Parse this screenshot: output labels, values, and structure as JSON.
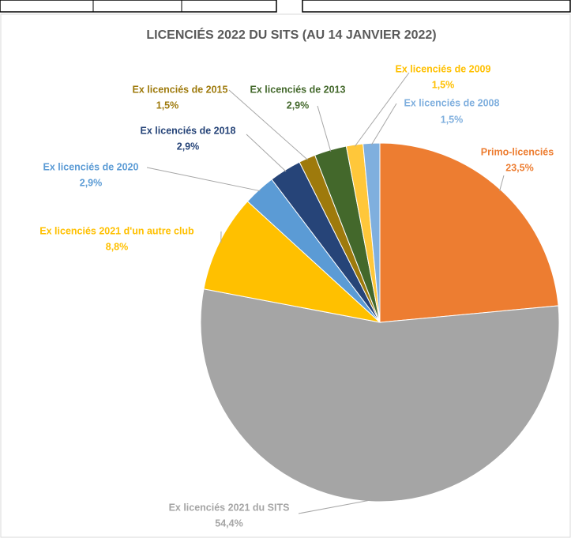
{
  "chart_data": {
    "type": "pie",
    "title": "LICENCIÉS 2022 DU SITS (AU 14 JANVIER 2022)",
    "categories": [
      "Primo-licenciés",
      "Ex licenciés 2021 du SITS",
      "Ex licenciés 2021 d'un autre club",
      "Ex licenciés de 2020",
      "Ex licenciés de 2018",
      "Ex licenciés de 2015",
      "Ex licenciés de 2013",
      "Ex licenciés de 2009",
      "Ex licenciés de 2008"
    ],
    "values": [
      23.5,
      54.4,
      8.8,
      2.9,
      2.9,
      1.5,
      2.9,
      1.5,
      1.5
    ],
    "value_labels": [
      "23,5%",
      "54,4%",
      "8,8%",
      "2,9%",
      "2,9%",
      "1,5%",
      "2,9%",
      "1,5%",
      "1,5%"
    ],
    "colors": [
      "#ED7D31",
      "#A5A5A5",
      "#FFC000",
      "#5B9BD5",
      "#264478",
      "#9E7A0C",
      "#43682B",
      "#FFC73A",
      "#7FAFDE"
    ]
  }
}
